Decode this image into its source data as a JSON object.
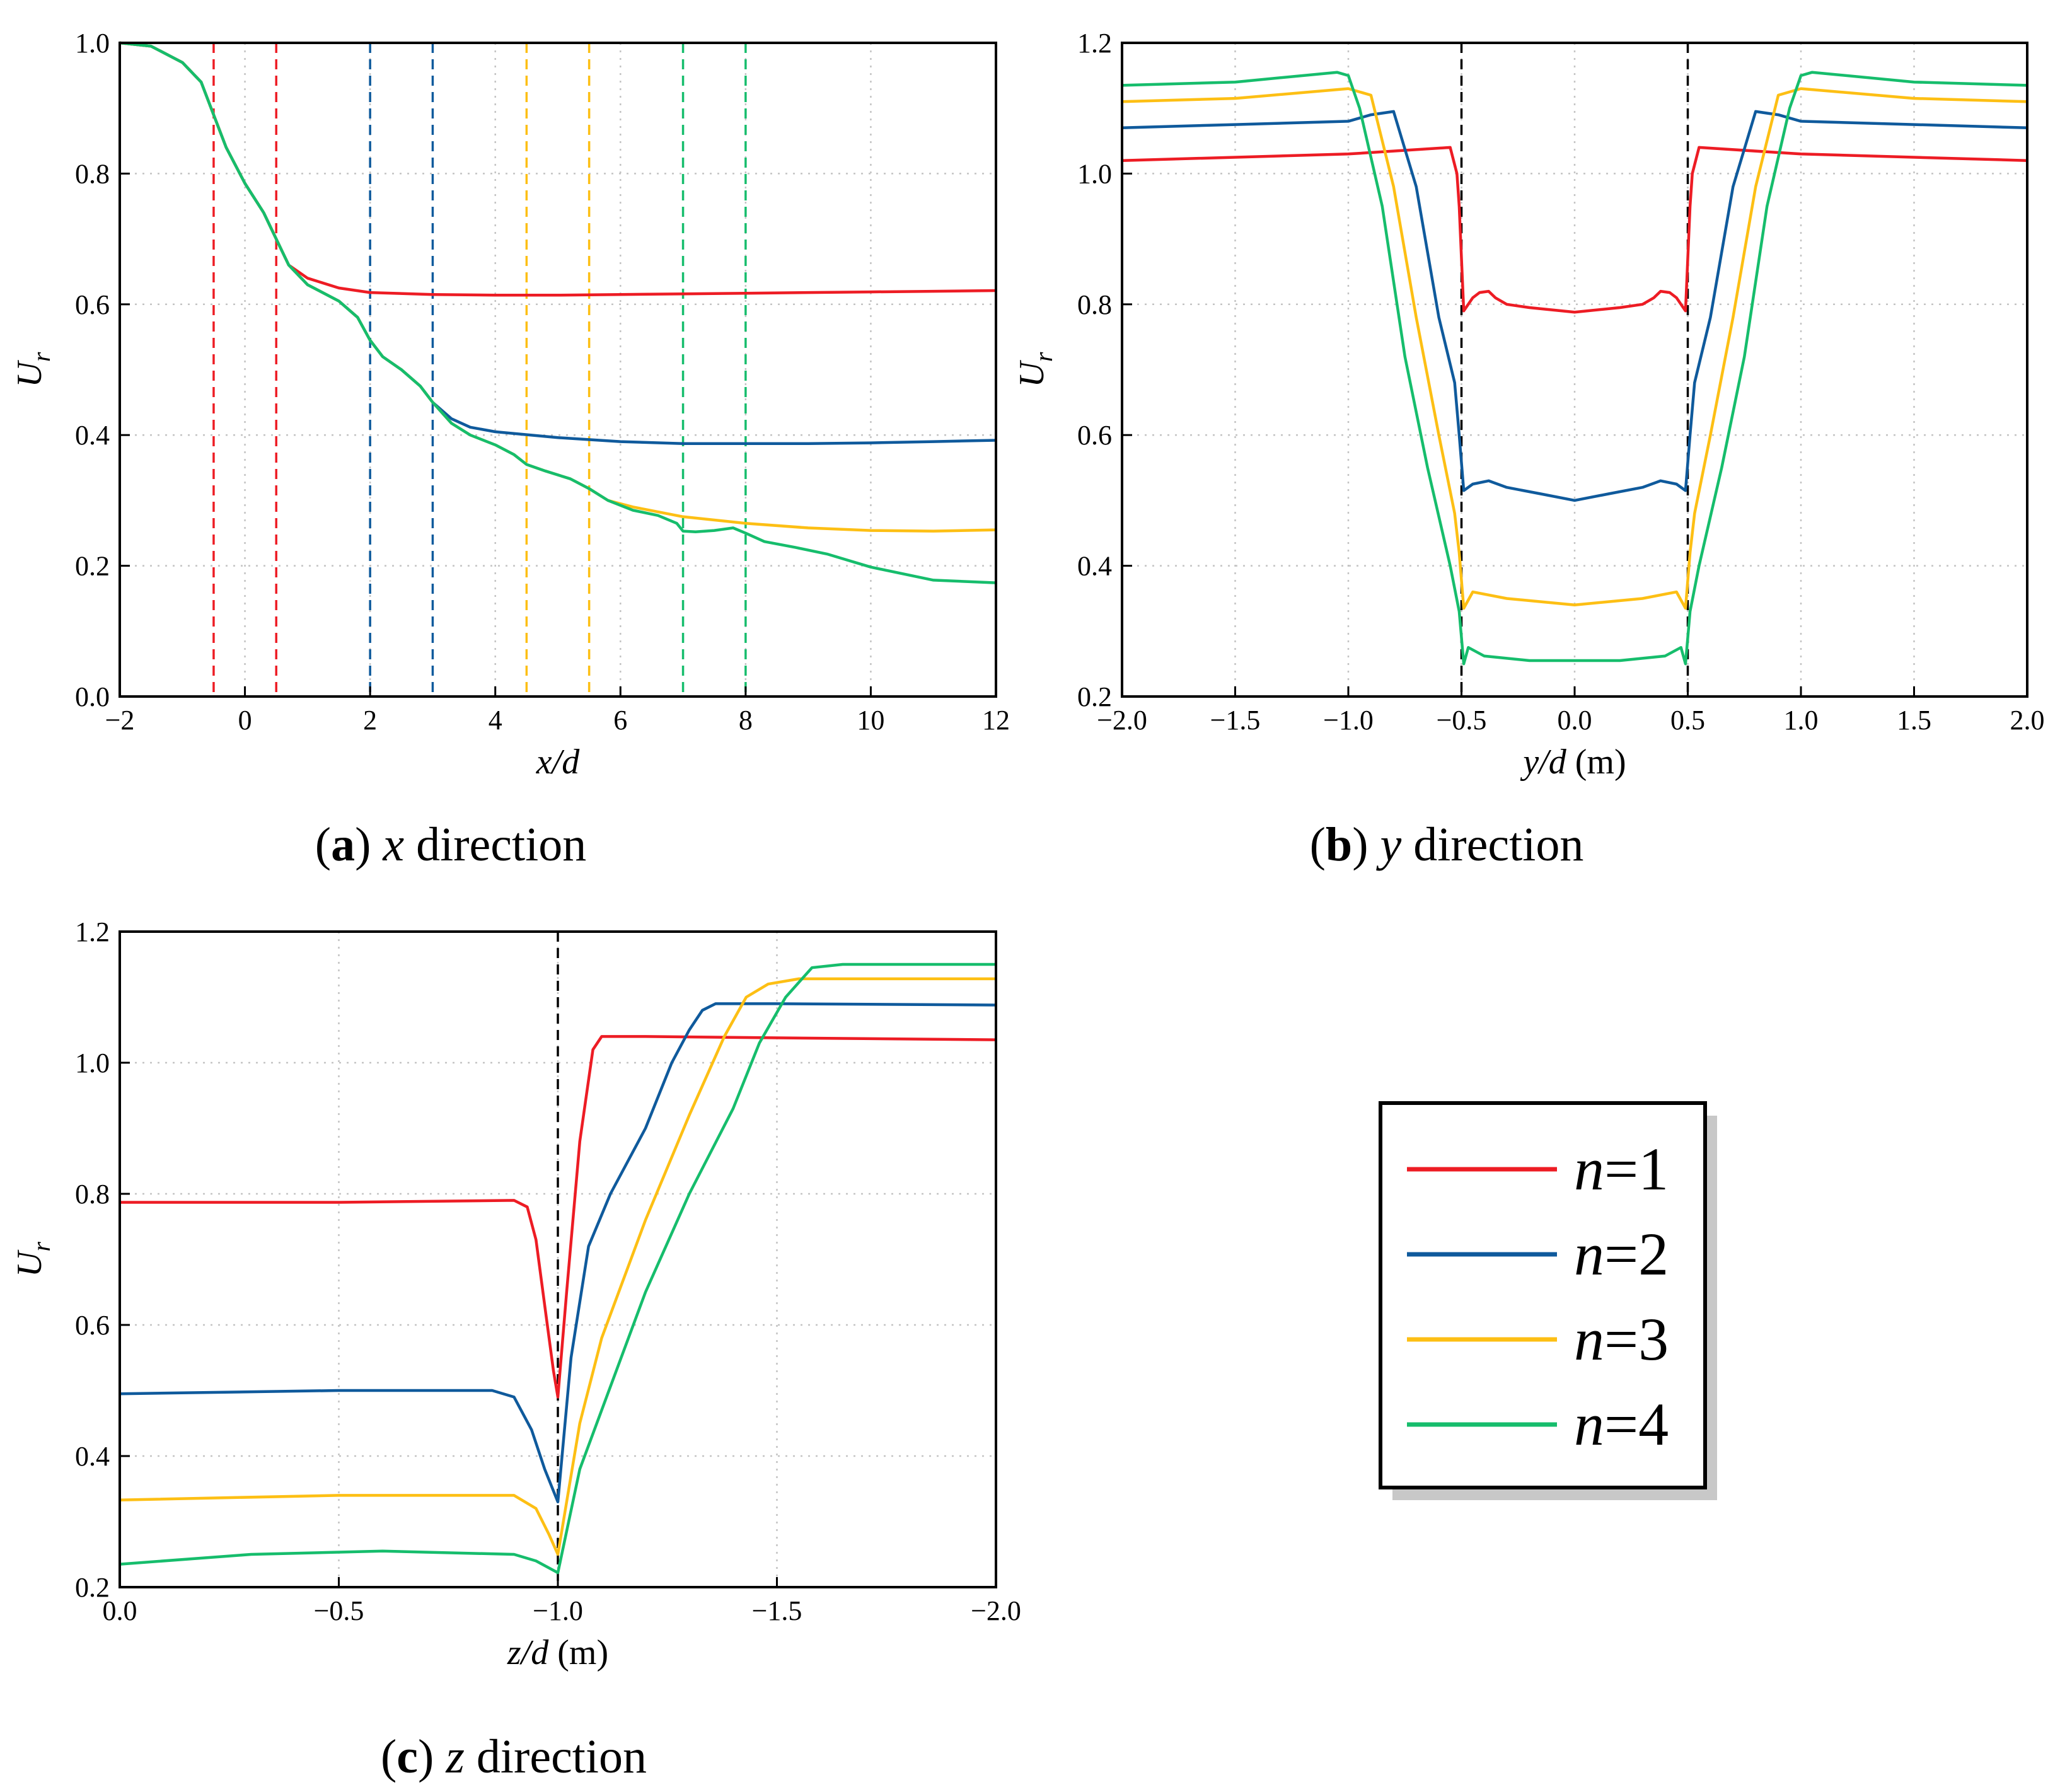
{
  "chart_data": [
    {
      "type": "line",
      "id": "a",
      "caption_letter": "a",
      "caption_var": "x",
      "caption_rest": " direction",
      "xlabel": "x/d",
      "xlabel_unit": "",
      "ylabel": "U",
      "ylabel_sub": "r",
      "xlim": [
        -2,
        12
      ],
      "ylim": [
        0.0,
        1.0
      ],
      "xticks": [
        -2,
        0,
        2,
        4,
        6,
        8,
        10,
        12
      ],
      "xtick_labels": [
        "−2",
        "0",
        "2",
        "4",
        "6",
        "8",
        "10",
        "12"
      ],
      "yticks": [
        0.0,
        0.2,
        0.4,
        0.6,
        0.8,
        1.0
      ],
      "ytick_labels": [
        "0.0",
        "0.2",
        "0.4",
        "0.6",
        "0.8",
        "1.0"
      ],
      "grid": true,
      "vlines": [
        {
          "x": -0.5,
          "color": "#ed1c24"
        },
        {
          "x": 0.5,
          "color": "#ed1c24"
        },
        {
          "x": 2,
          "color": "#0f5a9c"
        },
        {
          "x": 3,
          "color": "#0f5a9c"
        },
        {
          "x": 4.5,
          "color": "#fdbf14"
        },
        {
          "x": 5.5,
          "color": "#fdbf14"
        },
        {
          "x": 7,
          "color": "#16bd6c"
        },
        {
          "x": 8,
          "color": "#16bd6c"
        }
      ],
      "series": [
        {
          "name": "n=1",
          "color": "#ed1c24",
          "x": [
            -2,
            -1.5,
            -1.0,
            -0.7,
            -0.5,
            -0.3,
            0,
            0.3,
            0.5,
            0.7,
            1.0,
            1.5,
            2.0,
            3,
            4,
            5,
            6,
            7,
            8,
            9,
            10,
            11,
            12
          ],
          "y": [
            1.0,
            0.995,
            0.97,
            0.94,
            0.89,
            0.84,
            0.785,
            0.74,
            0.7,
            0.66,
            0.64,
            0.625,
            0.618,
            0.615,
            0.614,
            0.614,
            0.615,
            0.616,
            0.617,
            0.618,
            0.619,
            0.62,
            0.621
          ]
        },
        {
          "name": "n=2",
          "color": "#0f5a9c",
          "x": [
            -2,
            -1.5,
            -1.0,
            -0.7,
            -0.5,
            -0.3,
            0,
            0.3,
            0.5,
            0.7,
            1.0,
            1.5,
            1.8,
            2.0,
            2.2,
            2.5,
            2.8,
            3.0,
            3.3,
            3.6,
            4,
            5,
            6,
            7,
            8,
            9,
            10,
            11,
            12
          ],
          "y": [
            1.0,
            0.995,
            0.97,
            0.94,
            0.89,
            0.84,
            0.785,
            0.74,
            0.7,
            0.66,
            0.63,
            0.605,
            0.58,
            0.545,
            0.52,
            0.5,
            0.475,
            0.45,
            0.425,
            0.412,
            0.405,
            0.396,
            0.39,
            0.387,
            0.387,
            0.387,
            0.388,
            0.39,
            0.392
          ]
        },
        {
          "name": "n=3",
          "color": "#fdbf14",
          "x": [
            -2,
            -1.5,
            -1.0,
            -0.7,
            -0.5,
            -0.3,
            0,
            0.3,
            0.5,
            0.7,
            1.0,
            1.5,
            1.8,
            2.0,
            2.2,
            2.5,
            2.8,
            3.0,
            3.3,
            3.6,
            4.0,
            4.3,
            4.5,
            4.8,
            5.2,
            5.5,
            5.8,
            6.2,
            7,
            8,
            9,
            10,
            11,
            12
          ],
          "y": [
            1.0,
            0.995,
            0.97,
            0.94,
            0.89,
            0.84,
            0.785,
            0.74,
            0.7,
            0.66,
            0.63,
            0.605,
            0.58,
            0.545,
            0.52,
            0.5,
            0.475,
            0.45,
            0.418,
            0.4,
            0.385,
            0.37,
            0.355,
            0.345,
            0.333,
            0.318,
            0.3,
            0.29,
            0.275,
            0.265,
            0.258,
            0.254,
            0.253,
            0.255
          ]
        },
        {
          "name": "n=4",
          "color": "#16bd6c",
          "x": [
            -2,
            -1.5,
            -1.0,
            -0.7,
            -0.5,
            -0.3,
            0,
            0.3,
            0.5,
            0.7,
            1.0,
            1.5,
            1.8,
            2.0,
            2.2,
            2.5,
            2.8,
            3.0,
            3.3,
            3.6,
            4.0,
            4.3,
            4.5,
            4.8,
            5.2,
            5.5,
            5.8,
            6.2,
            6.6,
            6.9,
            7.0,
            7.2,
            7.5,
            7.8,
            8.0,
            8.3,
            8.8,
            9.3,
            10,
            11,
            12
          ],
          "y": [
            1.0,
            0.995,
            0.97,
            0.94,
            0.89,
            0.84,
            0.785,
            0.74,
            0.7,
            0.66,
            0.63,
            0.605,
            0.58,
            0.545,
            0.52,
            0.5,
            0.475,
            0.45,
            0.418,
            0.4,
            0.385,
            0.37,
            0.355,
            0.345,
            0.333,
            0.318,
            0.3,
            0.285,
            0.277,
            0.265,
            0.253,
            0.252,
            0.254,
            0.258,
            0.25,
            0.237,
            0.228,
            0.218,
            0.198,
            0.178,
            0.174
          ]
        }
      ]
    },
    {
      "type": "line",
      "id": "b",
      "caption_letter": "b",
      "caption_var": "y",
      "caption_rest": " direction",
      "xlabel": "y/d",
      "xlabel_unit": " (m)",
      "ylabel": "U",
      "ylabel_sub": "r",
      "xlim": [
        -2.0,
        2.0
      ],
      "ylim": [
        0.2,
        1.2
      ],
      "xticks": [
        -2.0,
        -1.5,
        -1.0,
        -0.5,
        0.0,
        0.5,
        1.0,
        1.5,
        2.0
      ],
      "xtick_labels": [
        "−2.0",
        "−1.5",
        "−1.0",
        "−0.5",
        "0.0",
        "0.5",
        "1.0",
        "1.5",
        "2.0"
      ],
      "yticks": [
        0.2,
        0.4,
        0.6,
        0.8,
        1.0,
        1.2
      ],
      "ytick_labels": [
        "0.2",
        "0.4",
        "0.6",
        "0.8",
        "1.0",
        "1.2"
      ],
      "grid": true,
      "vlines": [
        {
          "x": -0.5,
          "color": "#000000"
        },
        {
          "x": 0.5,
          "color": "#000000"
        }
      ],
      "series": [
        {
          "name": "n=1",
          "color": "#ed1c24",
          "x": [
            -2.0,
            -1.0,
            -0.55,
            -0.52,
            -0.51,
            -0.49,
            -0.45,
            -0.42,
            -0.38,
            -0.35,
            -0.3,
            -0.2,
            0,
            0.2,
            0.3,
            0.35,
            0.38,
            0.42,
            0.45,
            0.49,
            0.51,
            0.52,
            0.55,
            1.0,
            2.0
          ],
          "y": [
            1.02,
            1.03,
            1.04,
            1.0,
            0.95,
            0.79,
            0.81,
            0.818,
            0.82,
            0.81,
            0.8,
            0.795,
            0.788,
            0.795,
            0.8,
            0.81,
            0.82,
            0.818,
            0.81,
            0.79,
            0.95,
            1.0,
            1.04,
            1.03,
            1.02
          ]
        },
        {
          "name": "n=2",
          "color": "#0f5a9c",
          "x": [
            -2.0,
            -1.5,
            -1.0,
            -0.9,
            -0.8,
            -0.7,
            -0.6,
            -0.53,
            -0.51,
            -0.49,
            -0.45,
            -0.38,
            -0.3,
            -0.15,
            0,
            0.15,
            0.3,
            0.38,
            0.45,
            0.49,
            0.51,
            0.53,
            0.6,
            0.7,
            0.8,
            0.9,
            1.0,
            1.5,
            2.0
          ],
          "y": [
            1.07,
            1.075,
            1.08,
            1.09,
            1.095,
            0.98,
            0.78,
            0.68,
            0.6,
            0.515,
            0.525,
            0.53,
            0.52,
            0.51,
            0.5,
            0.51,
            0.52,
            0.53,
            0.525,
            0.515,
            0.6,
            0.68,
            0.78,
            0.98,
            1.095,
            1.09,
            1.08,
            1.075,
            1.07
          ]
        },
        {
          "name": "n=3",
          "color": "#fdbf14",
          "x": [
            -2.0,
            -1.5,
            -1.0,
            -0.9,
            -0.8,
            -0.7,
            -0.6,
            -0.53,
            -0.51,
            -0.49,
            -0.45,
            -0.3,
            -0.15,
            0,
            0.15,
            0.3,
            0.45,
            0.49,
            0.51,
            0.53,
            0.6,
            0.7,
            0.8,
            0.9,
            1.0,
            1.5,
            2.0
          ],
          "y": [
            1.11,
            1.115,
            1.13,
            1.12,
            0.98,
            0.78,
            0.6,
            0.48,
            0.42,
            0.335,
            0.36,
            0.35,
            0.345,
            0.34,
            0.345,
            0.35,
            0.36,
            0.335,
            0.42,
            0.48,
            0.6,
            0.78,
            0.98,
            1.12,
            1.13,
            1.115,
            1.11
          ]
        },
        {
          "name": "n=4",
          "color": "#16bd6c",
          "x": [
            -2.0,
            -1.5,
            -1.05,
            -1.0,
            -0.95,
            -0.85,
            -0.75,
            -0.65,
            -0.55,
            -0.51,
            -0.49,
            -0.47,
            -0.4,
            -0.2,
            0,
            0.2,
            0.4,
            0.47,
            0.49,
            0.51,
            0.55,
            0.65,
            0.75,
            0.85,
            0.95,
            1.0,
            1.05,
            1.5,
            2.0
          ],
          "y": [
            1.135,
            1.14,
            1.155,
            1.15,
            1.1,
            0.95,
            0.72,
            0.55,
            0.4,
            0.33,
            0.25,
            0.275,
            0.262,
            0.255,
            0.255,
            0.255,
            0.262,
            0.275,
            0.25,
            0.33,
            0.4,
            0.55,
            0.72,
            0.95,
            1.1,
            1.15,
            1.155,
            1.14,
            1.135
          ]
        }
      ]
    },
    {
      "type": "line",
      "id": "c",
      "caption_letter": "c",
      "caption_var": "z",
      "caption_rest": " direction",
      "xlabel": "z/d",
      "xlabel_unit": " (m)",
      "ylabel": "U",
      "ylabel_sub": "r",
      "xlim": [
        0.0,
        -2.0
      ],
      "ylim": [
        0.2,
        1.2
      ],
      "xticks": [
        0.0,
        -0.5,
        -1.0,
        -1.5,
        -2.0
      ],
      "xtick_labels": [
        "0.0",
        "−0.5",
        "−1.0",
        "−1.5",
        "−2.0"
      ],
      "yticks": [
        0.2,
        0.4,
        0.6,
        0.8,
        1.0,
        1.2
      ],
      "ytick_labels": [
        "0.2",
        "0.4",
        "0.6",
        "0.8",
        "1.0",
        "1.2"
      ],
      "grid": true,
      "vlines": [
        {
          "x": -1.0,
          "color": "#000000"
        }
      ],
      "series": [
        {
          "name": "n=1",
          "color": "#ed1c24",
          "x": [
            0.0,
            -0.5,
            -0.9,
            -0.93,
            -0.95,
            -0.97,
            -0.99,
            -1.0,
            -1.02,
            -1.05,
            -1.08,
            -1.1,
            -1.2,
            -1.5,
            -2.0
          ],
          "y": [
            0.787,
            0.787,
            0.79,
            0.78,
            0.73,
            0.63,
            0.53,
            0.49,
            0.65,
            0.88,
            1.02,
            1.04,
            1.04,
            1.038,
            1.035
          ]
        },
        {
          "name": "n=2",
          "color": "#0f5a9c",
          "x": [
            0.0,
            -0.5,
            -0.85,
            -0.9,
            -0.94,
            -0.97,
            -1.0,
            -1.03,
            -1.07,
            -1.12,
            -1.2,
            -1.26,
            -1.3,
            -1.33,
            -1.36,
            -1.5,
            -2.0
          ],
          "y": [
            0.495,
            0.5,
            0.5,
            0.49,
            0.44,
            0.38,
            0.33,
            0.55,
            0.72,
            0.8,
            0.9,
            1.0,
            1.05,
            1.08,
            1.09,
            1.09,
            1.088
          ]
        },
        {
          "name": "n=3",
          "color": "#fdbf14",
          "x": [
            0.0,
            -0.5,
            -0.9,
            -0.95,
            -0.98,
            -1.0,
            -1.05,
            -1.1,
            -1.2,
            -1.3,
            -1.38,
            -1.43,
            -1.48,
            -1.55,
            -2.0
          ],
          "y": [
            0.333,
            0.34,
            0.34,
            0.32,
            0.28,
            0.25,
            0.45,
            0.58,
            0.76,
            0.92,
            1.04,
            1.1,
            1.12,
            1.128,
            1.128
          ]
        },
        {
          "name": "n=4",
          "color": "#16bd6c",
          "x": [
            0.0,
            -0.3,
            -0.6,
            -0.9,
            -0.95,
            -1.0,
            -1.05,
            -1.1,
            -1.2,
            -1.3,
            -1.4,
            -1.46,
            -1.52,
            -1.58,
            -1.65,
            -2.0
          ],
          "y": [
            0.235,
            0.25,
            0.255,
            0.25,
            0.24,
            0.222,
            0.38,
            0.47,
            0.65,
            0.8,
            0.93,
            1.03,
            1.1,
            1.145,
            1.15,
            1.15
          ]
        }
      ]
    }
  ],
  "legend": {
    "position": "right-center",
    "entries": [
      {
        "var": "n",
        "rest": "=1",
        "color": "#ed1c24"
      },
      {
        "var": "n",
        "rest": "=2",
        "color": "#0f5a9c"
      },
      {
        "var": "n",
        "rest": "=3",
        "color": "#fdbf14"
      },
      {
        "var": "n",
        "rest": "=4",
        "color": "#16bd6c"
      }
    ]
  }
}
